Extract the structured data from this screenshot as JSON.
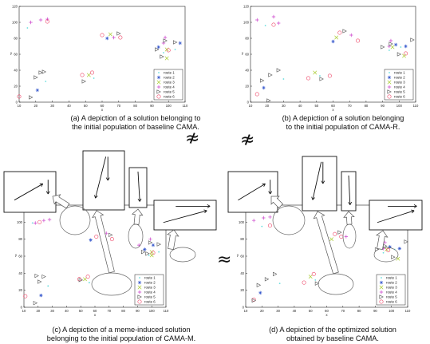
{
  "colors": {
    "route1": "#66dddd",
    "route2": "#3355cc",
    "route3": "#aacc33",
    "route4": "#cc44cc",
    "route5": "#555555",
    "route6": "#ee4466"
  },
  "symbols": {
    "not_approx": "≉",
    "approx": "≈"
  },
  "panels": [
    {
      "id": "a",
      "caption": [
        "(a) A depiction of a solution belonging to",
        "the initial population of baseline CAMA."
      ],
      "xlabel": "x",
      "ylabel": "y",
      "xlim": [
        10,
        110
      ],
      "ylim": [
        0,
        120
      ],
      "xticks": [
        10,
        20,
        30,
        40,
        50,
        60,
        70,
        80,
        90,
        100,
        110
      ],
      "yticks": [
        0,
        20,
        40,
        60,
        80,
        100,
        120
      ],
      "legend": [
        "route 1",
        "route 2",
        "route 3",
        "route 4",
        "route 5",
        "route 6"
      ]
    },
    {
      "id": "b",
      "caption": [
        "(b) A depiction of a solution belonging",
        "to the initial population of CAMA-R."
      ],
      "xlabel": "x",
      "ylabel": "y",
      "xlim": [
        10,
        110
      ],
      "ylim": [
        0,
        120
      ],
      "xticks": [
        10,
        20,
        30,
        40,
        50,
        60,
        70,
        80,
        90,
        100,
        110
      ],
      "yticks": [
        0,
        20,
        40,
        60,
        80,
        100,
        120
      ],
      "legend": [
        "route 1",
        "route 2",
        "route 3",
        "route 4",
        "route 5",
        "route 6"
      ]
    },
    {
      "id": "c",
      "caption": [
        "(c) A depiction of a meme-induced solution",
        "belonging to the initial population of CAMA-M."
      ],
      "xlabel": "x",
      "ylabel": "y",
      "xlim": [
        10,
        110
      ],
      "ylim": [
        0,
        120
      ],
      "xticks": [
        10,
        20,
        30,
        40,
        50,
        60,
        70,
        80,
        90,
        100,
        110
      ],
      "yticks": [
        0,
        20,
        40,
        60,
        80,
        100
      ],
      "legend": [
        "route 1",
        "route 2",
        "route 3",
        "route 4",
        "route 5",
        "route 6"
      ]
    },
    {
      "id": "d",
      "caption": [
        "(d) A depiction of the optimized solution",
        "obtained by baseline CAMA."
      ],
      "xlabel": "x",
      "ylabel": "y",
      "xlim": [
        10,
        110
      ],
      "ylim": [
        0,
        120
      ],
      "xticks": [
        10,
        20,
        30,
        40,
        50,
        60,
        70,
        80,
        90,
        100,
        110
      ],
      "yticks": [
        0,
        20,
        40,
        60,
        80,
        100
      ],
      "legend": [
        "route 1",
        "route 2",
        "route 3",
        "route 4",
        "route 5",
        "route 6"
      ]
    }
  ],
  "points": [
    {
      "x": 13,
      "y": 10,
      "r": 6
    },
    {
      "x": 18,
      "y": 5,
      "r": 5
    },
    {
      "x": 20,
      "y": 17,
      "r": 2
    },
    {
      "x": 22,
      "y": 36,
      "r": 5
    },
    {
      "x": 25,
      "y": 38,
      "r": 5
    },
    {
      "x": 20,
      "y": 28,
      "r": 5
    },
    {
      "x": 15,
      "y": 100,
      "r": 4
    },
    {
      "x": 18,
      "y": 96,
      "r": 1
    },
    {
      "x": 24,
      "y": 102,
      "r": 4
    },
    {
      "x": 26,
      "y": 106,
      "r": 4
    },
    {
      "x": 24,
      "y": 99,
      "r": 6
    },
    {
      "x": 28,
      "y": 27,
      "r": 1
    },
    {
      "x": 48,
      "y": 31,
      "r": 6
    },
    {
      "x": 50,
      "y": 34,
      "r": 3
    },
    {
      "x": 52,
      "y": 29,
      "r": 5
    },
    {
      "x": 55,
      "y": 36,
      "r": 6
    },
    {
      "x": 54,
      "y": 32,
      "r": 1
    },
    {
      "x": 60,
      "y": 78,
      "r": 2
    },
    {
      "x": 62,
      "y": 85,
      "r": 6
    },
    {
      "x": 65,
      "y": 82,
      "r": 3
    },
    {
      "x": 68,
      "y": 86,
      "r": 5
    },
    {
      "x": 70,
      "y": 84,
      "r": 4
    },
    {
      "x": 72,
      "y": 80,
      "r": 6
    },
    {
      "x": 92,
      "y": 68,
      "r": 5
    },
    {
      "x": 94,
      "y": 72,
      "r": 4
    },
    {
      "x": 96,
      "y": 70,
      "r": 2
    },
    {
      "x": 98,
      "y": 74,
      "r": 5
    },
    {
      "x": 97,
      "y": 66,
      "r": 3
    },
    {
      "x": 99,
      "y": 60,
      "r": 5
    },
    {
      "x": 101,
      "y": 64,
      "r": 6
    },
    {
      "x": 103,
      "y": 68,
      "r": 1
    },
    {
      "x": 104,
      "y": 72,
      "r": 2
    },
    {
      "x": 106,
      "y": 76,
      "r": 5
    },
    {
      "x": 98,
      "y": 78,
      "r": 4
    },
    {
      "x": 95,
      "y": 62,
      "r": 1
    },
    {
      "x": 102,
      "y": 58,
      "r": 3
    }
  ]
}
